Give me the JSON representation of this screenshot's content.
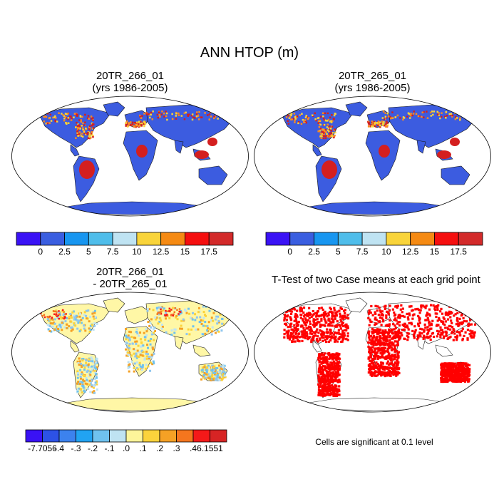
{
  "figure": {
    "title": "ANN HTOP (m)",
    "panels": [
      {
        "title_line1": "20TR_266_01",
        "title_line2": "(yrs 1986-2005)"
      },
      {
        "title_line1": "20TR_265_01",
        "title_line2": "(yrs 1986-2005)"
      },
      {
        "title_line1": "20TR_266_01",
        "title_line2": "- 20TR_265_01"
      },
      {
        "title_line1": "T-Test of two Case means at each grid point",
        "title_line2": ""
      }
    ],
    "note": "Cells are significant at 0.1 level"
  },
  "colorbar_top": {
    "labels": [
      "0",
      "2.5",
      "5",
      "7.5",
      "10",
      "12.5",
      "15",
      "17.5"
    ],
    "colors": [
      "#3a12f5",
      "#3a5ee0",
      "#1896f0",
      "#4fbdea",
      "#bfe3f2",
      "#f9d43a",
      "#f58a13",
      "#f50f0f",
      "#d32a2a"
    ]
  },
  "colorbar_diff": {
    "labels": [
      "-7.7056",
      "-.4",
      "-.3",
      "-.2",
      "-.1",
      ".0",
      ".1",
      ".2",
      ".3",
      ".4",
      "6.1551"
    ],
    "colors": [
      "#3a12f5",
      "#2d52e6",
      "#3c82ee",
      "#21a3f2",
      "#6fc2ef",
      "#bfe3f2",
      "#fdf59a",
      "#fbd33c",
      "#f5a125",
      "#f5761e",
      "#f51919",
      "#d72424"
    ]
  },
  "map_colors": {
    "land_low": "#3c5ce0",
    "tropics": "#d41f1f",
    "mid": "#ff8a1f",
    "diff_base": "#fff7a6",
    "diff_blue": "#8fc6ef",
    "ttest": "#ff0000"
  }
}
